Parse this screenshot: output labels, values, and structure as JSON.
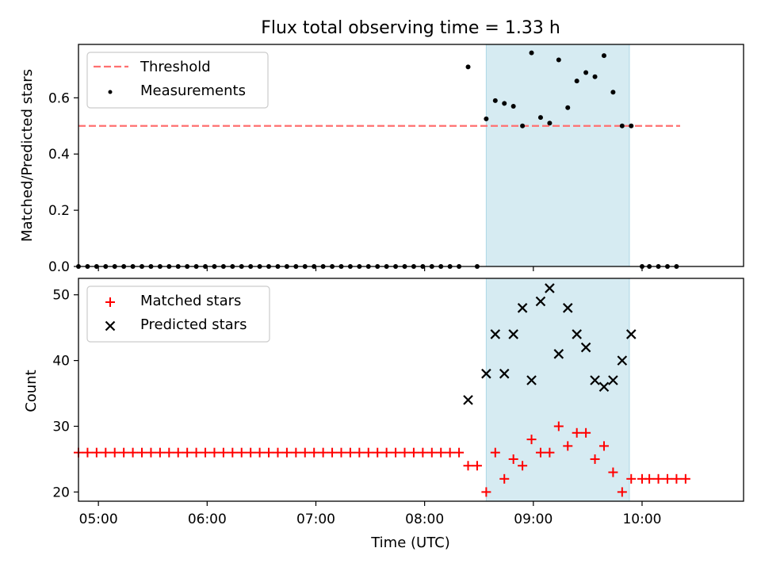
{
  "chart_data": [
    {
      "type": "scatter",
      "title": "Flux total observing time = 1.33 h",
      "ylabel": "Matched/Predicted stars",
      "xlabel": "",
      "xlim": [
        "04:49",
        "10:56"
      ],
      "ylim": [
        0,
        0.79
      ],
      "x_ticks": [
        "05:00",
        "06:00",
        "07:00",
        "08:00",
        "09:00",
        "10:00"
      ],
      "y_ticks": [
        "0.0",
        "0.2",
        "0.4",
        "0.6"
      ],
      "shaded_interval": [
        "08:34",
        "09:53"
      ],
      "threshold": {
        "name": "Threshold",
        "value": 0.5,
        "x_range": [
          "04:49",
          "10:21"
        ],
        "color": "#ff7070",
        "style": "dashed"
      },
      "legend_position": "upper left",
      "series": [
        {
          "name": "Measurements",
          "color": "#000000",
          "x": [
            "04:49",
            "04:54",
            "04:59",
            "05:04",
            "05:09",
            "05:14",
            "05:19",
            "05:24",
            "05:29",
            "05:34",
            "05:39",
            "05:44",
            "05:49",
            "05:54",
            "05:59",
            "06:04",
            "06:09",
            "06:14",
            "06:19",
            "06:24",
            "06:29",
            "06:34",
            "06:39",
            "06:44",
            "06:49",
            "06:54",
            "06:59",
            "07:04",
            "07:09",
            "07:14",
            "07:19",
            "07:24",
            "07:29",
            "07:34",
            "07:39",
            "07:44",
            "07:49",
            "07:54",
            "07:59",
            "08:04",
            "08:09",
            "08:14",
            "08:19",
            "08:24",
            "08:29",
            "08:34",
            "08:39",
            "08:44",
            "08:49",
            "08:54",
            "08:59",
            "09:04",
            "09:09",
            "09:14",
            "09:19",
            "09:24",
            "09:29",
            "09:34",
            "09:39",
            "09:44",
            "09:49",
            "09:54",
            "10:00",
            "10:04",
            "10:09",
            "10:14",
            "10:19"
          ],
          "y": [
            0,
            0,
            0,
            0,
            0,
            0,
            0,
            0,
            0,
            0,
            0,
            0,
            0,
            0,
            0,
            0,
            0,
            0,
            0,
            0,
            0,
            0,
            0,
            0,
            0,
            0,
            0,
            0,
            0,
            0,
            0,
            0,
            0,
            0,
            0,
            0,
            0,
            0,
            0,
            0,
            0,
            0,
            0,
            0.71,
            0,
            0.525,
            0.59,
            0.58,
            0.57,
            0.5,
            0.76,
            0.53,
            0.51,
            0.735,
            0.565,
            0.66,
            0.69,
            0.675,
            0.75,
            0.62,
            0.5,
            0.5,
            0,
            0,
            0,
            0,
            0
          ]
        }
      ]
    },
    {
      "type": "scatter",
      "title": "",
      "xlabel": "Time (UTC)",
      "ylabel": "Count",
      "xlim": [
        "04:49",
        "10:56"
      ],
      "ylim": [
        18.6,
        52.5
      ],
      "x_ticks": [
        "05:00",
        "06:00",
        "07:00",
        "08:00",
        "09:00",
        "10:00"
      ],
      "y_ticks": [
        "20",
        "30",
        "40",
        "50"
      ],
      "shaded_interval": [
        "08:34",
        "09:53"
      ],
      "legend_position": "upper left",
      "series": [
        {
          "name": "Matched stars",
          "color": "#ff0000",
          "marker": "plus",
          "x": [
            "04:49",
            "04:54",
            "04:59",
            "05:04",
            "05:09",
            "05:14",
            "05:19",
            "05:24",
            "05:29",
            "05:34",
            "05:39",
            "05:44",
            "05:49",
            "05:54",
            "05:59",
            "06:04",
            "06:09",
            "06:14",
            "06:19",
            "06:24",
            "06:29",
            "06:34",
            "06:39",
            "06:44",
            "06:49",
            "06:54",
            "06:59",
            "07:04",
            "07:09",
            "07:14",
            "07:19",
            "07:24",
            "07:29",
            "07:34",
            "07:39",
            "07:44",
            "07:49",
            "07:54",
            "07:59",
            "08:04",
            "08:09",
            "08:14",
            "08:19",
            "08:24",
            "08:29",
            "08:34",
            "08:39",
            "08:44",
            "08:49",
            "08:54",
            "08:59",
            "09:04",
            "09:09",
            "09:14",
            "09:19",
            "09:24",
            "09:29",
            "09:34",
            "09:39",
            "09:44",
            "09:49",
            "09:54",
            "10:00",
            "10:04",
            "10:09",
            "10:14",
            "10:19",
            "10:24"
          ],
          "y": [
            26,
            26,
            26,
            26,
            26,
            26,
            26,
            26,
            26,
            26,
            26,
            26,
            26,
            26,
            26,
            26,
            26,
            26,
            26,
            26,
            26,
            26,
            26,
            26,
            26,
            26,
            26,
            26,
            26,
            26,
            26,
            26,
            26,
            26,
            26,
            26,
            26,
            26,
            26,
            26,
            26,
            26,
            26,
            24,
            24,
            20,
            26,
            22,
            25,
            24,
            28,
            26,
            26,
            30,
            27,
            29,
            29,
            25,
            27,
            23,
            20,
            22,
            22,
            22,
            22,
            22,
            22,
            22
          ]
        },
        {
          "name": "Predicted stars",
          "color": "#000000",
          "marker": "x",
          "x": [
            "08:24",
            "08:34",
            "08:39",
            "08:44",
            "08:49",
            "08:54",
            "08:59",
            "09:04",
            "09:09",
            "09:14",
            "09:19",
            "09:24",
            "09:29",
            "09:34",
            "09:39",
            "09:44",
            "09:49",
            "09:54"
          ],
          "y": [
            34,
            38,
            44,
            38,
            44,
            48,
            37,
            49,
            51,
            41,
            48,
            44,
            42,
            37,
            36,
            37,
            40,
            44
          ]
        }
      ]
    }
  ]
}
